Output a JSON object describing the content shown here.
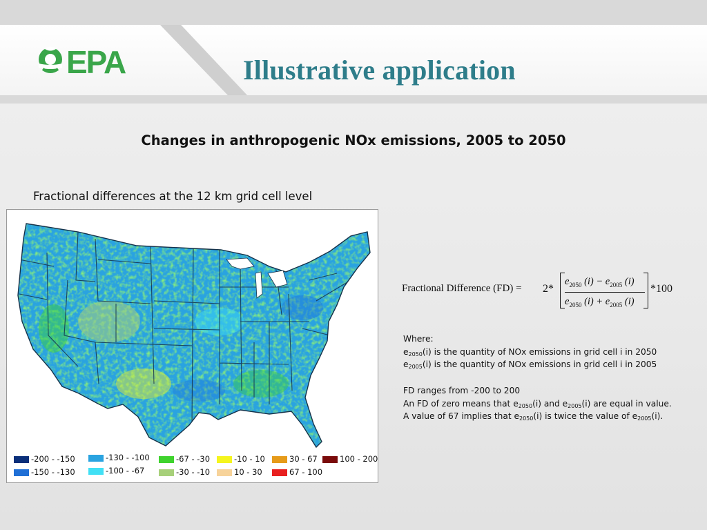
{
  "header": {
    "logo_text": "EPA",
    "title": "Illustrative application"
  },
  "subtitle": "Changes in anthropogenic NOx emissions, 2005 to 2050",
  "caption": "Fractional differences at the 12 km grid cell level",
  "legend": [
    {
      "label": "-200 - -150",
      "color": "#0b2f7a"
    },
    {
      "label": "-150 - -130",
      "color": "#1f6fd6"
    },
    {
      "label": "-130 - -100",
      "color": "#2aa3e0"
    },
    {
      "label": "-100 - -67",
      "color": "#41e0f5"
    },
    {
      "label": "-67 - -30",
      "color": "#3fd32e"
    },
    {
      "label": "-30 - -10",
      "color": "#a7d07a"
    },
    {
      "label": "-10 - 10",
      "color": "#f5f51e"
    },
    {
      "label": "10 - 30",
      "color": "#f7d39a"
    },
    {
      "label": "30 - 67",
      "color": "#e69b1a"
    },
    {
      "label": "67 - 100",
      "color": "#e82020"
    },
    {
      "label": "100 - 200",
      "color": "#7a0a0a"
    }
  ],
  "formula": {
    "label": "Fractional Difference (FD) =",
    "factor": "2*",
    "num_a": "e",
    "num_a_sub": "2050",
    "num_op": " (i) − ",
    "num_b": "e",
    "num_b_sub": "2005",
    "num_tail": " (i)",
    "den_op": " (i) + ",
    "tail": "*100"
  },
  "notes": {
    "where": "Where:",
    "l1_pre": "e",
    "l1_sub": "2050",
    "l1_post": "(i) is the quantity of NOx emissions in grid cell i in 2050",
    "l2_pre": "e",
    "l2_sub": "2005",
    "l2_post": "(i) is the quantity of NOx emissions in grid cell i in 2005",
    "range": "FD ranges from -200 to 200",
    "z_a": "An FD of zero means that e",
    "z_s1": "2050",
    "z_b": "(i) and e",
    "z_s2": "2005",
    "z_c": "(i) are equal in value.",
    "v_a": "A value of 67 implies that e",
    "v_s1": "2050",
    "v_b": "(i) is twice the value of e",
    "v_s2": "2005",
    "v_c": "(i)."
  }
}
